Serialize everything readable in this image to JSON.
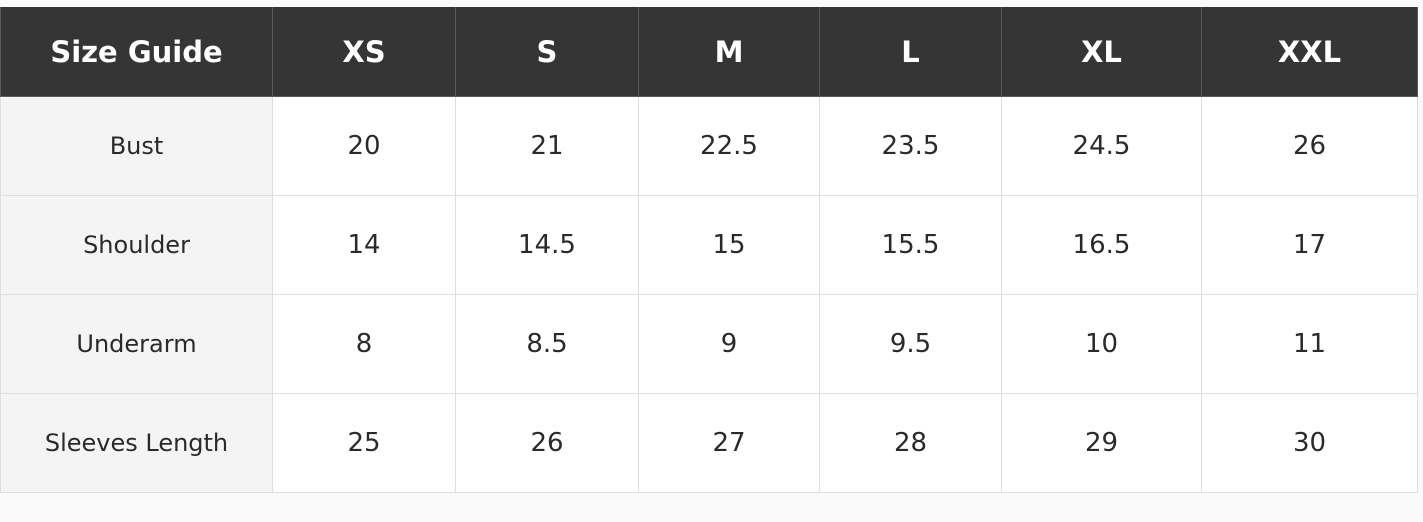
{
  "table": {
    "header": [
      "Size Guide",
      "XS",
      "S",
      "M",
      "L",
      "XL",
      "XXL"
    ],
    "rows": [
      [
        "Bust",
        20,
        21,
        22.5,
        23.5,
        24.5,
        26
      ],
      [
        "Shoulder",
        14,
        14.5,
        15,
        15.5,
        16.5,
        17
      ],
      [
        "Underarm",
        8,
        8.5,
        9,
        9.5,
        10,
        11
      ],
      [
        "Sleeves Length",
        25,
        26,
        27,
        28,
        29,
        30
      ]
    ]
  }
}
